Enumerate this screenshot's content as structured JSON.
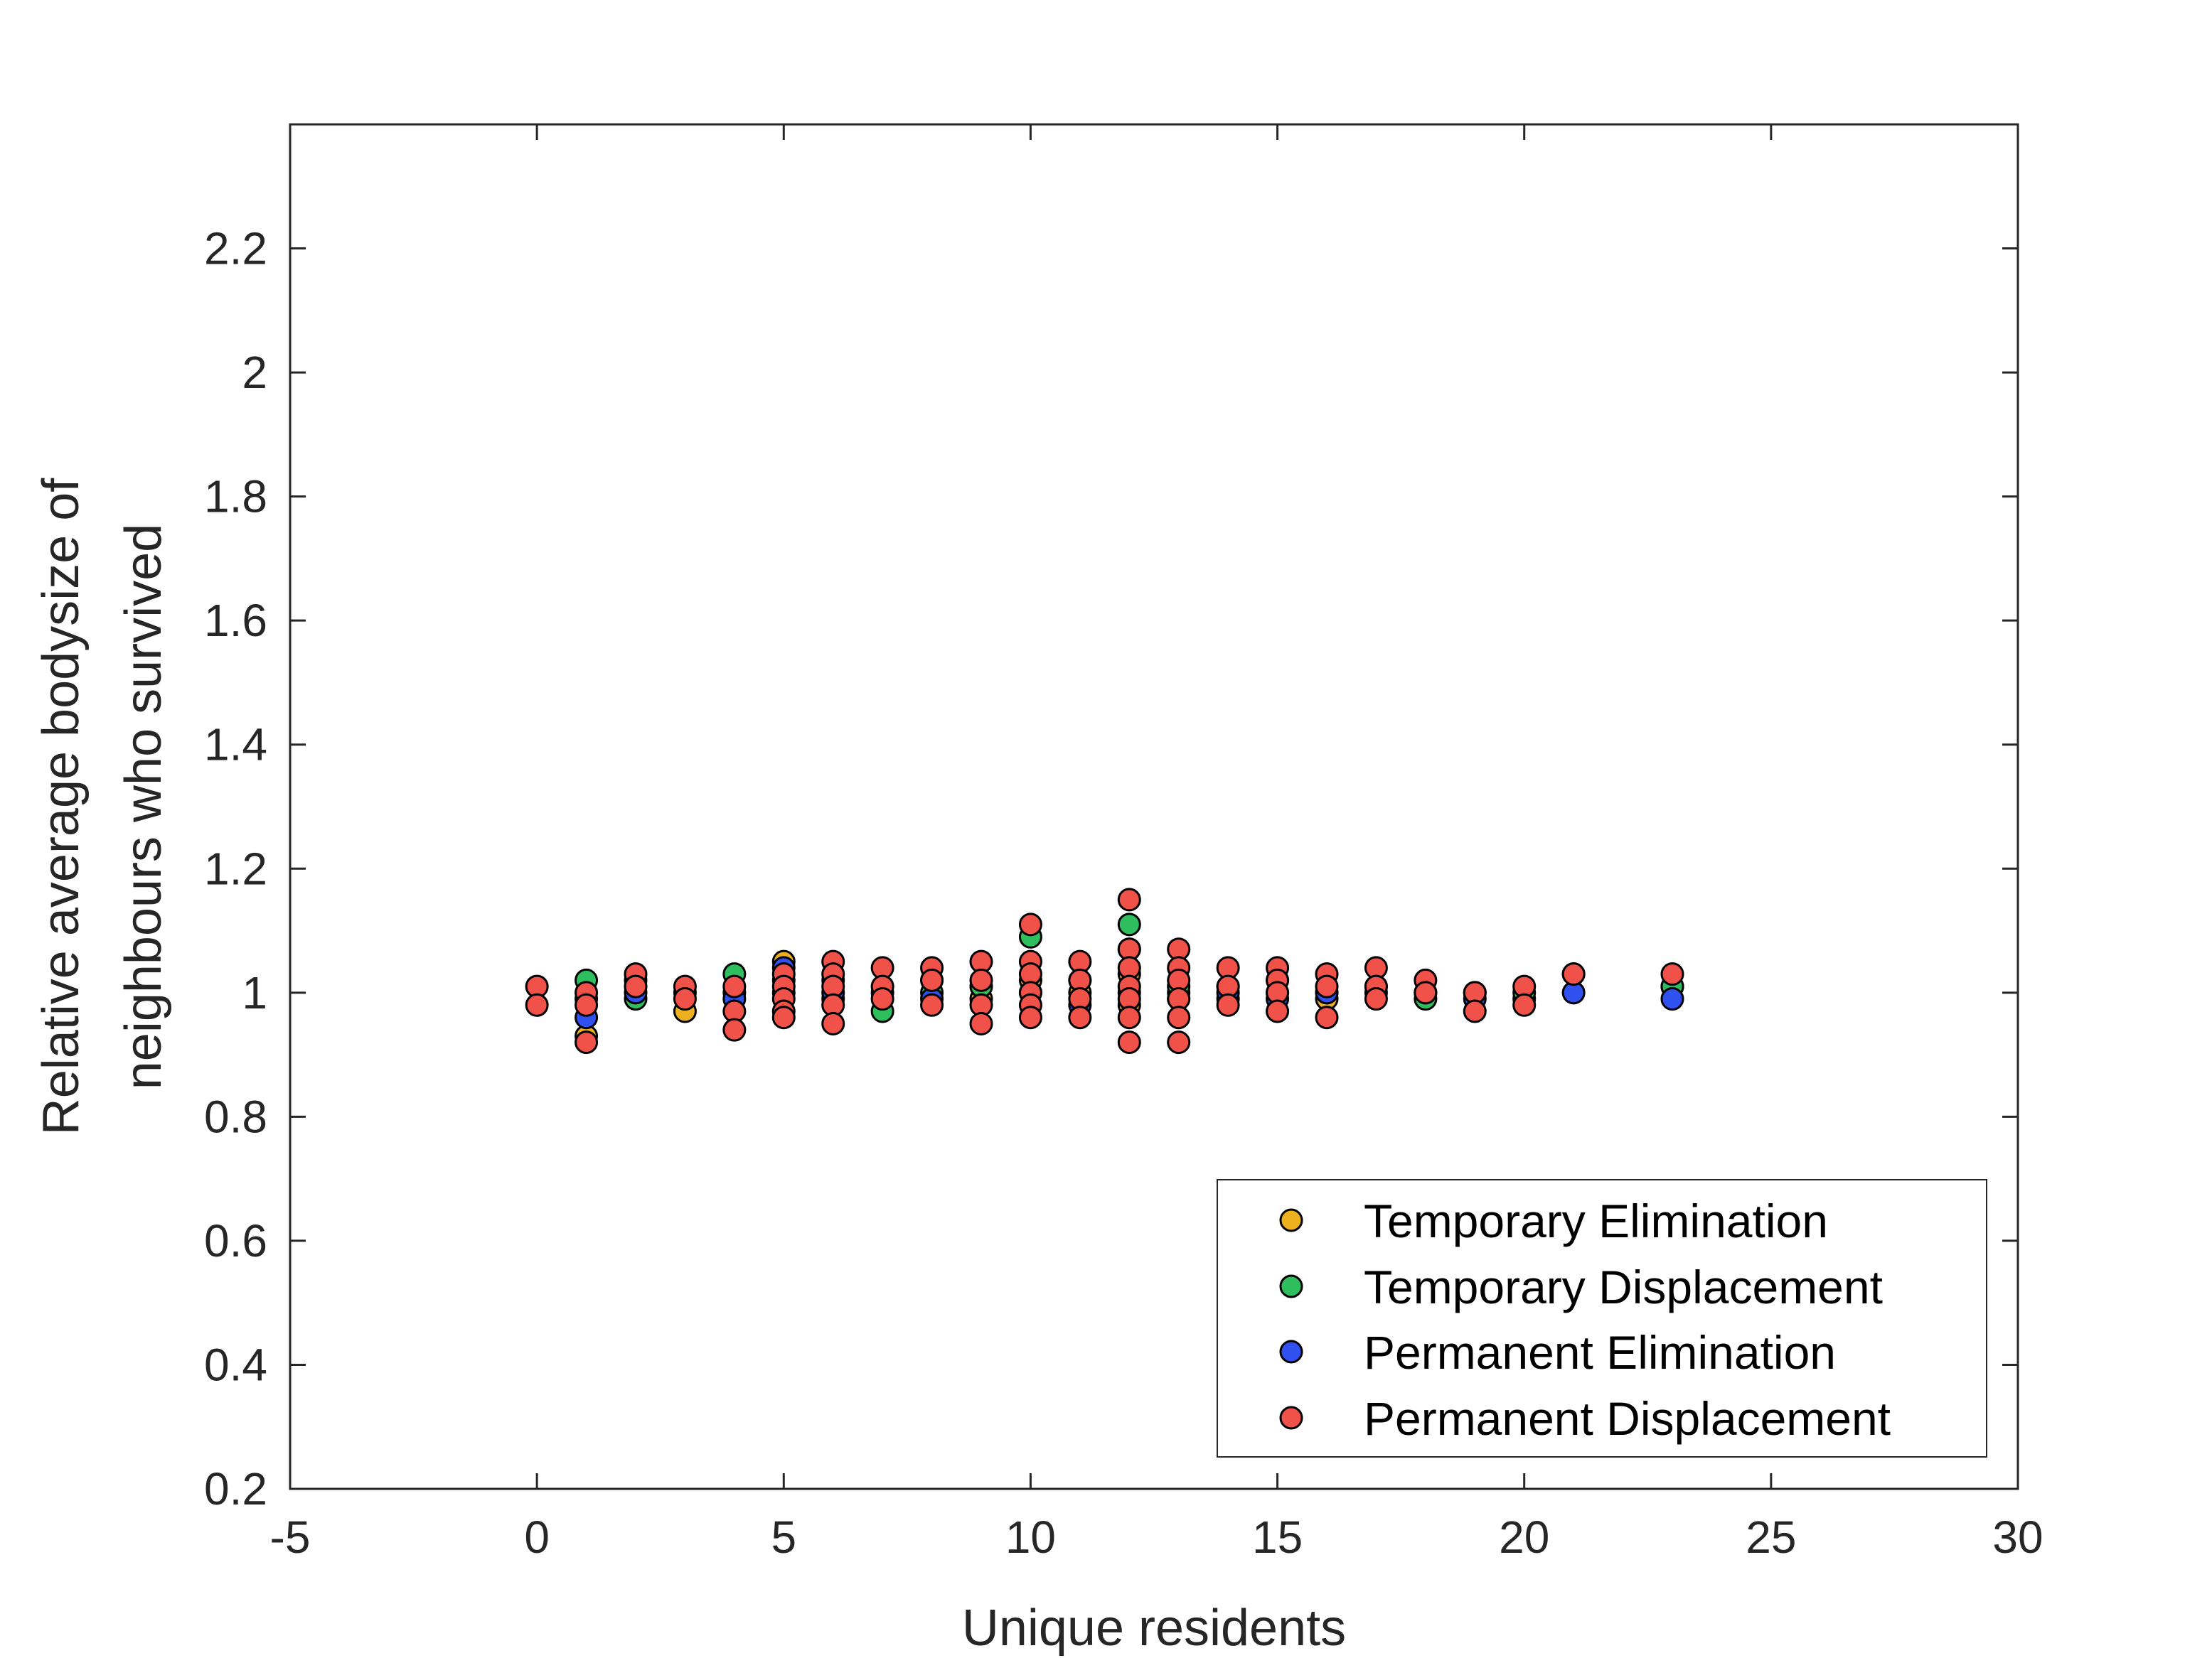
{
  "chart_data": {
    "type": "scatter",
    "title": "",
    "xlabel": "Unique residents",
    "ylabel_lines": [
      "Relative average bodysize of",
      "neighbours who survived"
    ],
    "xlim": [
      -5,
      30
    ],
    "ylim": [
      0.2,
      2.4
    ],
    "xticks": [
      -5,
      0,
      5,
      10,
      15,
      20,
      25,
      30
    ],
    "xtick_labels": [
      "-5",
      "0",
      "5",
      "10",
      "15",
      "20",
      "25",
      "30"
    ],
    "yticks": [
      0.2,
      0.4,
      0.6,
      0.8,
      1.0,
      1.2,
      1.4,
      1.6,
      1.8,
      2.0,
      2.2
    ],
    "ytick_labels": [
      "0.2",
      "0.4",
      "0.6",
      "0.8",
      "1",
      "1.2",
      "1.4",
      "1.6",
      "1.8",
      "2",
      "2.2"
    ],
    "grid": false,
    "legend_position": "bottom-right",
    "series": [
      {
        "name": "Temporary Elimination",
        "color": "#EDB120",
        "points": [
          [
            1,
            0.93
          ],
          [
            1,
            0.99
          ],
          [
            2,
            1.02
          ],
          [
            3,
            0.97
          ],
          [
            4,
            1.0
          ],
          [
            5,
            1.05
          ],
          [
            5,
            1.0
          ],
          [
            6,
            1.02
          ],
          [
            7,
            1.0
          ],
          [
            8,
            1.02
          ],
          [
            9,
            0.99
          ],
          [
            10,
            1.02
          ],
          [
            11,
            1.0
          ],
          [
            12,
            1.07
          ],
          [
            12,
            1.03
          ],
          [
            12,
            0.98
          ],
          [
            13,
            1.0
          ],
          [
            14,
            1.01
          ],
          [
            15,
            1.0
          ],
          [
            16,
            0.99
          ],
          [
            17,
            1.01
          ],
          [
            18,
            1.0
          ],
          [
            19,
            1.0
          ],
          [
            20,
            0.99
          ],
          [
            23,
            1.01
          ]
        ]
      },
      {
        "name": "Temporary Displacement",
        "color": "#2FBE5E",
        "points": [
          [
            1,
            1.02
          ],
          [
            2,
            0.99
          ],
          [
            3,
            1.0
          ],
          [
            4,
            1.03
          ],
          [
            5,
            1.02
          ],
          [
            6,
            0.99
          ],
          [
            7,
            0.97
          ],
          [
            8,
            1.0
          ],
          [
            9,
            1.01
          ],
          [
            10,
            1.09
          ],
          [
            11,
            1.02
          ],
          [
            12,
            1.11
          ],
          [
            13,
            1.01
          ],
          [
            14,
            0.99
          ],
          [
            15,
            1.02
          ],
          [
            16,
            1.0
          ],
          [
            17,
            1.0
          ],
          [
            18,
            0.99
          ],
          [
            19,
            1.0
          ],
          [
            20,
            1.0
          ],
          [
            21,
            1.03
          ],
          [
            23,
            1.01
          ]
        ]
      },
      {
        "name": "Permanent Elimination",
        "color": "#3050F0",
        "points": [
          [
            1,
            0.96
          ],
          [
            2,
            1.0
          ],
          [
            4,
            0.99
          ],
          [
            5,
            1.04
          ],
          [
            6,
            1.0
          ],
          [
            8,
            0.99
          ],
          [
            10,
            1.0
          ],
          [
            11,
            0.98
          ],
          [
            12,
            1.0
          ],
          [
            13,
            0.99
          ],
          [
            14,
            1.0
          ],
          [
            15,
            0.99
          ],
          [
            16,
            1.0
          ],
          [
            18,
            1.0
          ],
          [
            19,
            0.99
          ],
          [
            21,
            1.0
          ],
          [
            23,
            0.99
          ]
        ]
      },
      {
        "name": "Permanent Displacement",
        "color": "#F0524A",
        "points": [
          [
            0,
            1.01
          ],
          [
            0,
            0.98
          ],
          [
            1,
            1.0
          ],
          [
            1,
            0.98
          ],
          [
            1,
            0.92
          ],
          [
            2,
            1.03
          ],
          [
            2,
            1.01
          ],
          [
            3,
            1.01
          ],
          [
            3,
            0.99
          ],
          [
            4,
            1.01
          ],
          [
            4,
            0.97
          ],
          [
            4,
            0.94
          ],
          [
            5,
            1.03
          ],
          [
            5,
            1.01
          ],
          [
            5,
            0.99
          ],
          [
            5,
            0.97
          ],
          [
            5,
            0.96
          ],
          [
            6,
            1.05
          ],
          [
            6,
            1.03
          ],
          [
            6,
            1.01
          ],
          [
            6,
            0.98
          ],
          [
            6,
            0.95
          ],
          [
            7,
            1.04
          ],
          [
            7,
            1.01
          ],
          [
            7,
            0.99
          ],
          [
            8,
            1.04
          ],
          [
            8,
            1.02
          ],
          [
            8,
            0.98
          ],
          [
            9,
            1.05
          ],
          [
            9,
            1.02
          ],
          [
            9,
            0.98
          ],
          [
            9,
            0.95
          ],
          [
            10,
            1.11
          ],
          [
            10,
            1.05
          ],
          [
            10,
            1.03
          ],
          [
            10,
            1.0
          ],
          [
            10,
            0.98
          ],
          [
            10,
            0.96
          ],
          [
            11,
            1.05
          ],
          [
            11,
            1.02
          ],
          [
            11,
            0.99
          ],
          [
            11,
            0.96
          ],
          [
            12,
            1.15
          ],
          [
            12,
            1.07
          ],
          [
            12,
            1.04
          ],
          [
            12,
            1.01
          ],
          [
            12,
            0.99
          ],
          [
            12,
            0.96
          ],
          [
            12,
            0.92
          ],
          [
            13,
            1.07
          ],
          [
            13,
            1.04
          ],
          [
            13,
            1.02
          ],
          [
            13,
            0.99
          ],
          [
            13,
            0.96
          ],
          [
            13,
            0.92
          ],
          [
            14,
            1.04
          ],
          [
            14,
            1.01
          ],
          [
            14,
            0.98
          ],
          [
            15,
            1.04
          ],
          [
            15,
            1.02
          ],
          [
            15,
            1.0
          ],
          [
            15,
            0.97
          ],
          [
            16,
            1.03
          ],
          [
            16,
            1.01
          ],
          [
            16,
            0.96
          ],
          [
            17,
            1.04
          ],
          [
            17,
            1.01
          ],
          [
            17,
            0.99
          ],
          [
            18,
            1.02
          ],
          [
            18,
            1.0
          ],
          [
            19,
            1.0
          ],
          [
            19,
            0.97
          ],
          [
            20,
            1.01
          ],
          [
            20,
            0.98
          ],
          [
            21,
            1.03
          ],
          [
            23,
            1.03
          ]
        ]
      }
    ]
  }
}
